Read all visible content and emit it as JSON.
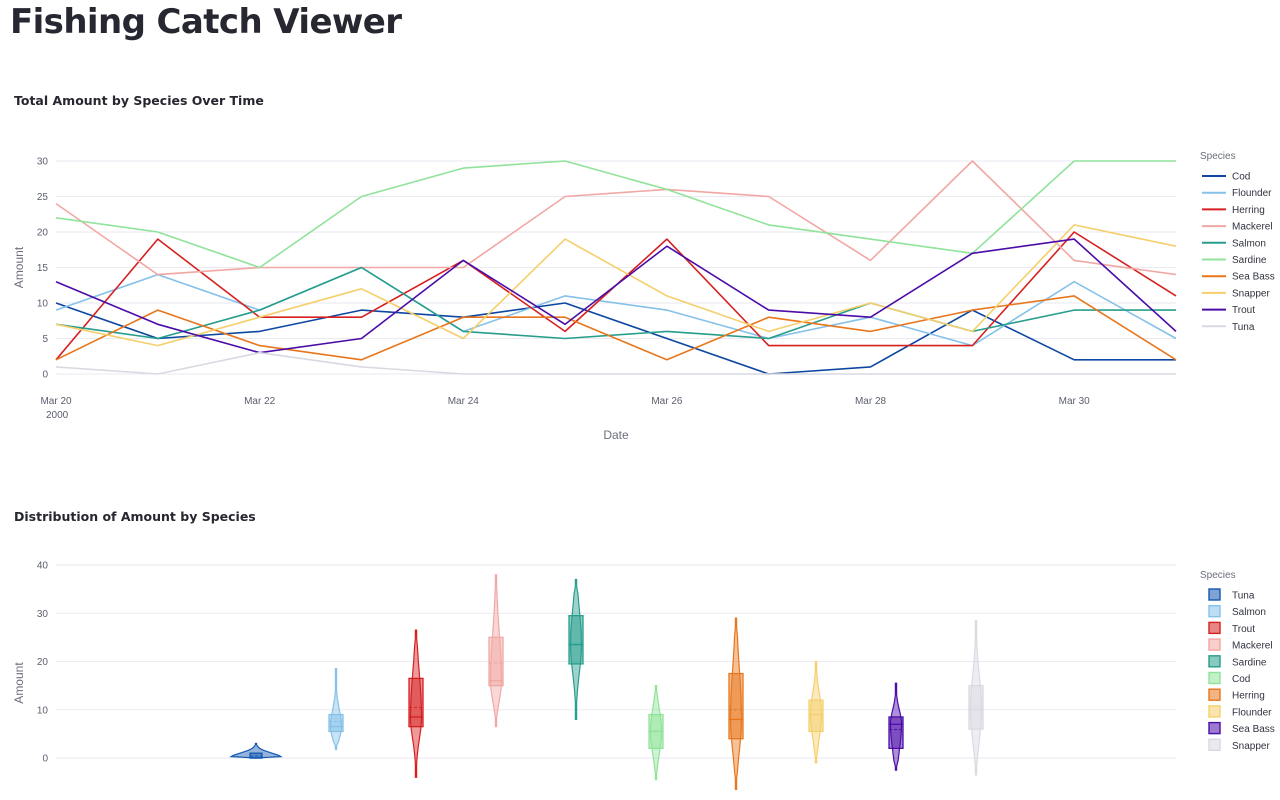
{
  "app": {
    "title": "Fishing Catch Viewer"
  },
  "chart_data": [
    {
      "type": "line",
      "title": "Total Amount by Species Over Time",
      "xlabel": "Date",
      "ylabel": "Amount",
      "ylim": [
        0,
        30
      ],
      "yticks": [
        0,
        5,
        10,
        15,
        20,
        25,
        30
      ],
      "xticks": [
        {
          "date": "2000-03-20",
          "label": "Mar 20",
          "sublabel": "2000"
        },
        {
          "date": "2000-03-22",
          "label": "Mar 22"
        },
        {
          "date": "2000-03-24",
          "label": "Mar 24"
        },
        {
          "date": "2000-03-26",
          "label": "Mar 26"
        },
        {
          "date": "2000-03-28",
          "label": "Mar 28"
        },
        {
          "date": "2000-03-30",
          "label": "Mar 30"
        }
      ],
      "x": [
        "2000-03-20",
        "2000-03-21",
        "2000-03-22",
        "2000-03-23",
        "2000-03-24",
        "2000-03-25",
        "2000-03-26",
        "2000-03-27",
        "2000-03-28",
        "2000-03-29",
        "2000-03-30",
        "2000-03-31"
      ],
      "grid": true,
      "legend_title": "Species",
      "legend_position": "right",
      "series": [
        {
          "name": "Cod",
          "color": "#0d47a1",
          "values": [
            10,
            5,
            6,
            9,
            8,
            10,
            5,
            0,
            1,
            9,
            2,
            2
          ]
        },
        {
          "name": "Flounder",
          "color": "#85c1e9",
          "values": [
            9,
            14,
            9,
            15,
            6,
            11,
            9,
            5,
            8,
            4,
            13,
            5
          ]
        },
        {
          "name": "Herring",
          "color": "#d62020",
          "values": [
            2,
            19,
            8,
            8,
            16,
            6,
            19,
            4,
            4,
            4,
            20,
            11
          ]
        },
        {
          "name": "Mackerel",
          "color": "#f1a7a3",
          "values": [
            24,
            14,
            15,
            15,
            15,
            25,
            26,
            25,
            16,
            30,
            16,
            14
          ]
        },
        {
          "name": "Salmon",
          "color": "#279d8d",
          "values": [
            7,
            5,
            9,
            15,
            6,
            5,
            6,
            5,
            10,
            6,
            9,
            9
          ]
        },
        {
          "name": "Sardine",
          "color": "#90e39a",
          "values": [
            22,
            20,
            15,
            25,
            29,
            30,
            26,
            21,
            19,
            17,
            30,
            30
          ]
        },
        {
          "name": "Sea Bass",
          "color": "#e8761c",
          "values": [
            2,
            9,
            4,
            2,
            8,
            8,
            2,
            8,
            6,
            9,
            11,
            2
          ]
        },
        {
          "name": "Snapper",
          "color": "#f5cf6b",
          "values": [
            7,
            4,
            8,
            12,
            5,
            19,
            11,
            6,
            10,
            6,
            21,
            18
          ]
        },
        {
          "name": "Trout",
          "color": "#4b0ca8",
          "values": [
            13,
            7,
            3,
            5,
            16,
            7,
            18,
            9,
            8,
            17,
            19,
            6
          ]
        },
        {
          "name": "Tuna",
          "color": "#d9d9e3",
          "values": [
            1,
            0,
            3,
            1,
            0,
            0,
            0,
            0,
            0,
            0,
            0,
            0
          ]
        }
      ]
    },
    {
      "type": "violin",
      "title": "Distribution of Amount by Species",
      "ylabel": "Amount",
      "yticks": [
        0,
        10,
        20,
        30,
        40
      ],
      "grid": true,
      "legend_title": "Species",
      "legend_position": "right",
      "series": [
        {
          "name": "Tuna",
          "color": "#1558b0",
          "min": 0,
          "max": 3,
          "q1": 0,
          "median": 0,
          "q3": 1,
          "mean": 0.4
        },
        {
          "name": "Salmon",
          "color": "#85c1e9",
          "min": 1.8,
          "max": 18.5,
          "q1": 5.5,
          "median": 6.5,
          "q3": 9,
          "mean": 7.6
        },
        {
          "name": "Trout",
          "color": "#d62020",
          "min": -4,
          "max": 26.5,
          "q1": 6.5,
          "median": 8.5,
          "q3": 16.5,
          "mean": 10.5
        },
        {
          "name": "Mackerel",
          "color": "#f1a7a3",
          "min": 6.5,
          "max": 38,
          "q1": 15,
          "median": 16,
          "q3": 25,
          "mean": 19.6
        },
        {
          "name": "Sardine",
          "color": "#279d8d",
          "min": 8,
          "max": 37,
          "q1": 19.5,
          "median": 23.5,
          "q3": 29.5,
          "mean": 23.6
        },
        {
          "name": "Cod",
          "color": "#90e39a",
          "min": -4.5,
          "max": 15,
          "q1": 2,
          "median": 5.5,
          "q3": 9,
          "mean": 5.6
        },
        {
          "name": "Herring",
          "color": "#e8761c",
          "min": -6.5,
          "max": 29,
          "q1": 4,
          "median": 8,
          "q3": 17.5,
          "mean": 10
        },
        {
          "name": "Flounder",
          "color": "#f5cf6b",
          "min": -1,
          "max": 20,
          "q1": 5.5,
          "median": 9,
          "q3": 12,
          "mean": 9
        },
        {
          "name": "Sea Bass",
          "color": "#4b0ca8",
          "min": -2.5,
          "max": 15.5,
          "q1": 2,
          "median": 7,
          "q3": 8.5,
          "mean": 5.9
        },
        {
          "name": "Snapper",
          "color": "#d9d9e3",
          "min": -3.5,
          "max": 28.5,
          "q1": 6,
          "median": 10,
          "q3": 15,
          "mean": 10.6
        }
      ]
    }
  ]
}
